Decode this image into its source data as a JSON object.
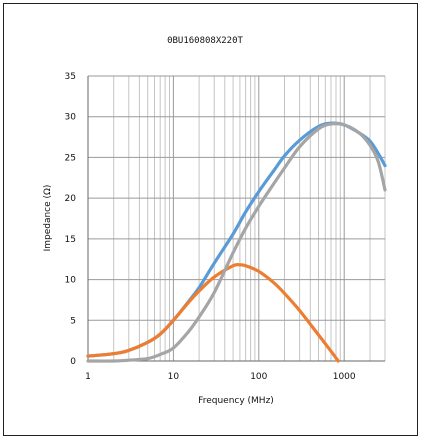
{
  "chart_data": {
    "type": "line",
    "title": "0BU160808X220T",
    "xlabel": "Frequency (MHz)",
    "ylabel": "Impedance (Ω)",
    "xscale": "log",
    "xlim": [
      1,
      3000
    ],
    "ylim": [
      0,
      35
    ],
    "xticks": [
      1,
      10,
      100,
      1000
    ],
    "xtick_labels": [
      "1",
      "10",
      "100",
      "1000"
    ],
    "yticks": [
      0,
      5,
      10,
      15,
      20,
      25,
      30,
      35
    ],
    "ytick_labels": [
      "0",
      "5",
      "10",
      "15",
      "20",
      "25",
      "30",
      "35"
    ],
    "grid": true,
    "legend": "none",
    "series": [
      {
        "color": "#5b9bd5",
        "x": [
          1,
          2,
          3,
          5,
          7,
          10,
          15,
          20,
          30,
          50,
          70,
          100,
          150,
          200,
          300,
          500,
          700,
          1000,
          1500,
          2000,
          2500,
          3000
        ],
        "y": [
          0.6,
          0.9,
          1.3,
          2.3,
          3.3,
          5.0,
          7.3,
          9.0,
          12.0,
          15.6,
          18.3,
          20.8,
          23.4,
          25.2,
          27.1,
          28.8,
          29.2,
          29.0,
          28.0,
          27.0,
          25.5,
          24.0
        ]
      },
      {
        "color": "#ed7d31",
        "x": [
          1,
          2,
          3,
          5,
          7,
          10,
          15,
          20,
          30,
          50,
          60,
          70,
          100,
          150,
          200,
          300,
          500,
          700,
          850
        ],
        "y": [
          0.6,
          0.9,
          1.3,
          2.3,
          3.3,
          5.0,
          7.2,
          8.6,
          10.3,
          11.7,
          11.8,
          11.7,
          11.0,
          9.6,
          8.3,
          6.2,
          3.2,
          1.2,
          0.0
        ]
      },
      {
        "color": "#a5a5a5",
        "x": [
          1,
          2,
          3,
          5,
          7,
          10,
          15,
          20,
          30,
          50,
          70,
          100,
          150,
          200,
          300,
          500,
          700,
          1000,
          1500,
          2000,
          2500,
          3000
        ],
        "y": [
          0.0,
          0.0,
          0.1,
          0.3,
          0.8,
          1.6,
          3.6,
          5.4,
          8.4,
          13.3,
          16.3,
          19.0,
          21.8,
          23.7,
          26.3,
          28.5,
          29.1,
          29.0,
          28.0,
          26.5,
          24.5,
          21.0
        ]
      }
    ]
  }
}
